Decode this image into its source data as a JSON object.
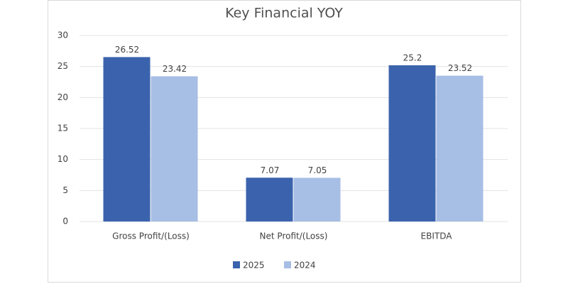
{
  "chart_data": {
    "type": "bar",
    "title": "Key Financial YOY",
    "categories": [
      "Gross Profit/(Loss)",
      "Net Profit/(Loss)",
      "EBITDA"
    ],
    "series": [
      {
        "name": "2025",
        "color": "#3b63ad",
        "values": [
          26.52,
          7.07,
          25.2
        ]
      },
      {
        "name": "2024",
        "color": "#a7bee5",
        "values": [
          23.42,
          7.05,
          23.52
        ]
      }
    ],
    "ylim": [
      0,
      30
    ],
    "yticks": [
      0,
      5,
      10,
      15,
      20,
      25,
      30
    ],
    "grid": true,
    "legend": "bottom"
  }
}
